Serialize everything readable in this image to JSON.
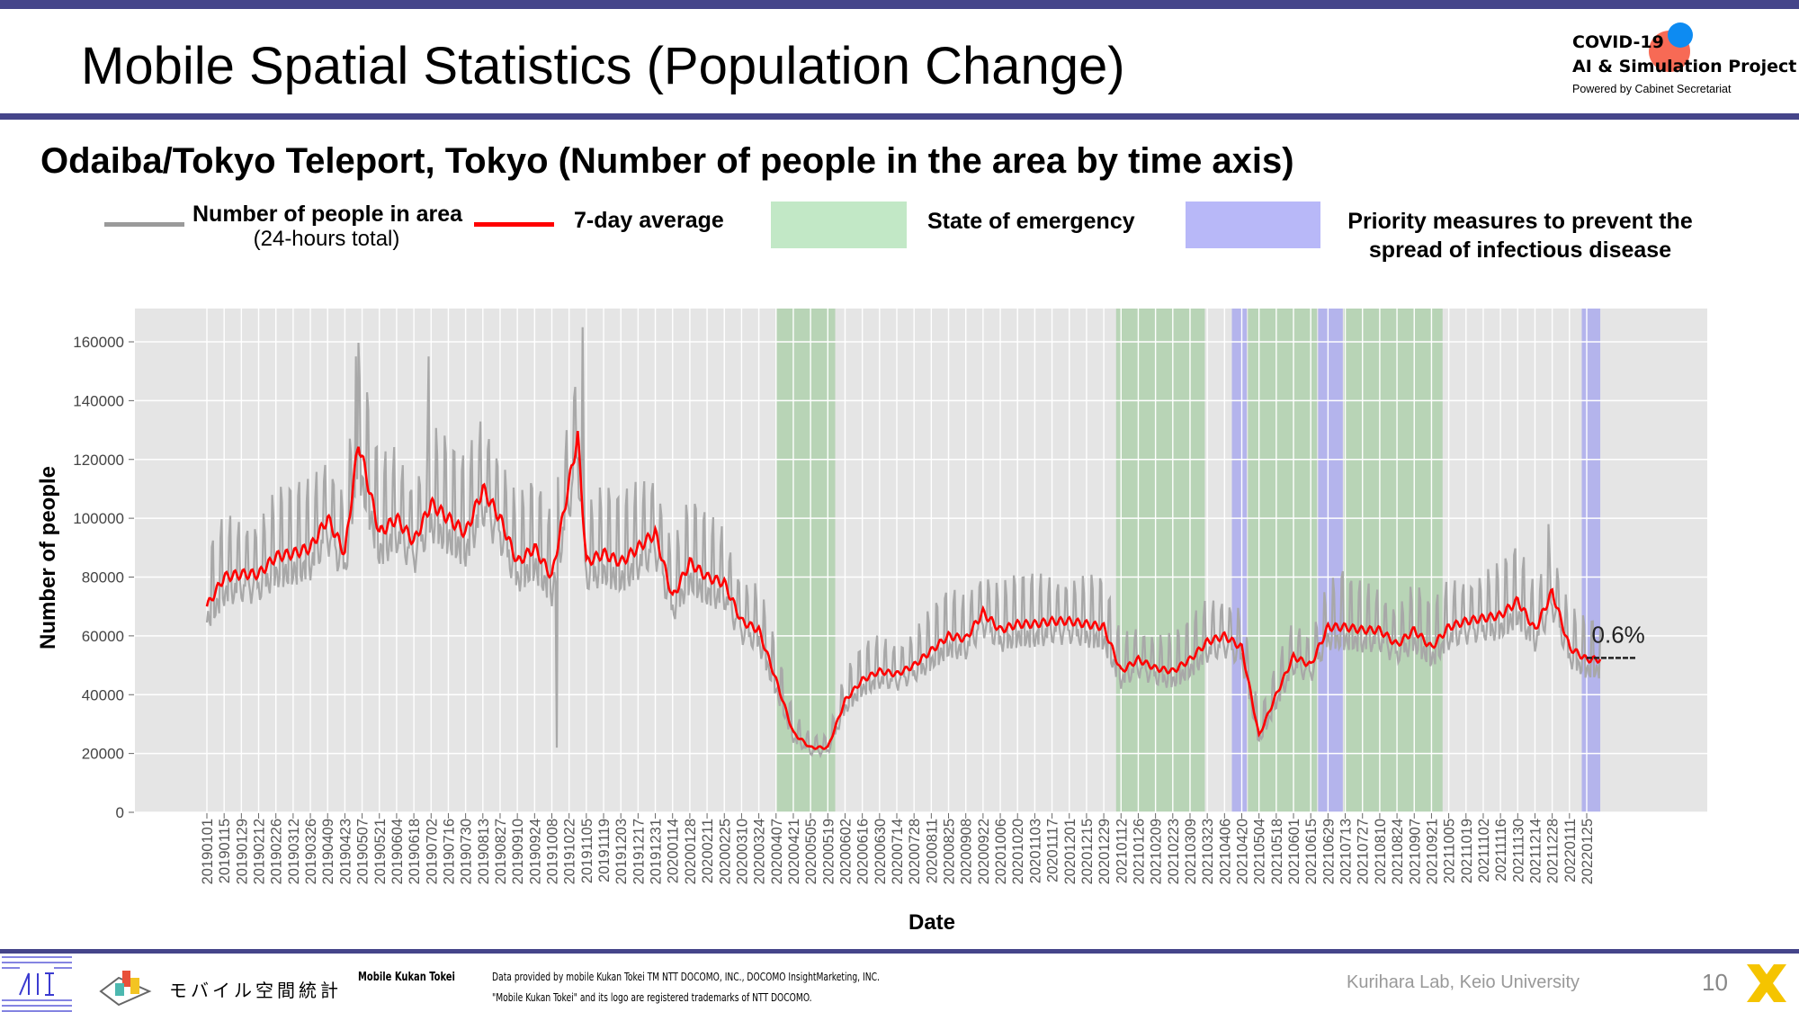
{
  "header": {
    "title": "Mobile Spatial Statistics (Population Change)",
    "logo": {
      "line1": "COVID-19",
      "line2": "AI & Simulation Project",
      "line3": "Powered by Cabinet Secretariat"
    }
  },
  "subtitle": "Odaiba/Tokyo Teleport, Tokyo (Number of people in the area by time axis)",
  "legend": {
    "daily_label": "Number of people in area",
    "daily_sublabel": "(24-hours total)",
    "avg_label": "7-day average",
    "emergency_label": "State of emergency",
    "priority_label_1": "Priority measures to prevent the",
    "priority_label_2": "spread of infectious disease"
  },
  "colors": {
    "header_bar": "#45458a",
    "daily": "#a8a8a8",
    "avg": "#ff0000",
    "emergency": "#b8d4b6",
    "priority": "#b4b4ec",
    "legend_emergency": "#c2e8c6",
    "legend_priority": "#b8b8f8",
    "plot_bg": "#e5e5e5",
    "forecast": "#222222"
  },
  "chart_data": {
    "type": "line",
    "xlabel": "Date",
    "ylabel": "Number of people",
    "ylim": [
      0,
      171000
    ],
    "yticks": [
      "0",
      "20000",
      "40000",
      "60000",
      "80000",
      "100000",
      "120000",
      "140000",
      "160000"
    ],
    "grid": true,
    "xticks": [
      "20190101",
      "20190115",
      "20190129",
      "20190212",
      "20190226",
      "20190312",
      "20190326",
      "20190409",
      "20190423",
      "20190507",
      "20190521",
      "20190604",
      "20190618",
      "20190702",
      "20190716",
      "20190730",
      "20190813",
      "20190827",
      "20190910",
      "20190924",
      "20191008",
      "20191022",
      "20191105",
      "20191119",
      "20191203",
      "20191217",
      "20191231",
      "20200114",
      "20200128",
      "20200211",
      "20200225",
      "20200310",
      "20200324",
      "20200407",
      "20200421",
      "20200505",
      "20200519",
      "20200602",
      "20200616",
      "20200630",
      "20200714",
      "20200728",
      "20200811",
      "20200825",
      "20200908",
      "20200922",
      "20201006",
      "20201020",
      "20201103",
      "20201117",
      "20201201",
      "20201215",
      "20201229",
      "20210112",
      "20210126",
      "20210209",
      "20210223",
      "20210309",
      "20210323",
      "20210406",
      "20210420",
      "20210504",
      "20210518",
      "20210601",
      "20210615",
      "20210629",
      "20210713",
      "20210727",
      "20210810",
      "20210824",
      "20210907",
      "20210921",
      "20211005",
      "20211019",
      "20211102",
      "20211116",
      "20211130",
      "20211214",
      "20211228",
      "20220111",
      "20220125"
    ],
    "avg_dates": [
      "20190101",
      "20190115",
      "20190129",
      "20190212",
      "20190226",
      "20190312",
      "20190326",
      "20190409",
      "20190423",
      "20190504",
      "20190521",
      "20190604",
      "20190618",
      "20190702",
      "20190716",
      "20190730",
      "20190813",
      "20190827",
      "20190910",
      "20190924",
      "20191008",
      "20191029",
      "20191105",
      "20191119",
      "20191203",
      "20191217",
      "20191231",
      "20200114",
      "20200128",
      "20200211",
      "20200225",
      "20200310",
      "20200324",
      "20200407",
      "20200421",
      "20200505",
      "20200519",
      "20200602",
      "20200616",
      "20200630",
      "20200714",
      "20200728",
      "20200811",
      "20200825",
      "20200908",
      "20200922",
      "20201006",
      "20201020",
      "20201103",
      "20201117",
      "20201201",
      "20201215",
      "20201229",
      "20210112",
      "20210126",
      "20210209",
      "20210223",
      "20210309",
      "20210323",
      "20210406",
      "20210420",
      "20210504",
      "20210518",
      "20210601",
      "20210615",
      "20210629",
      "20210713",
      "20210727",
      "20210810",
      "20210824",
      "20210907",
      "20210921",
      "20211005",
      "20211019",
      "20211102",
      "20211116",
      "20211130",
      "20211214",
      "20211228",
      "20220111",
      "20220125",
      "20220205"
    ],
    "avg_values": [
      70000,
      80000,
      81000,
      81000,
      87000,
      88000,
      90000,
      100000,
      88000,
      126000,
      95000,
      100000,
      92000,
      105000,
      100000,
      95000,
      110000,
      100000,
      85000,
      90000,
      80000,
      128000,
      85000,
      88000,
      85000,
      90000,
      95000,
      73000,
      85000,
      80000,
      78000,
      65000,
      62000,
      45000,
      27000,
      22000,
      22000,
      38000,
      45000,
      48000,
      47000,
      50000,
      55000,
      60000,
      59000,
      68000,
      62000,
      64000,
      64000,
      65000,
      65000,
      64000,
      63000,
      48000,
      52000,
      49000,
      48000,
      52000,
      58000,
      60000,
      56000,
      26000,
      40000,
      53000,
      50000,
      63000,
      63000,
      62000,
      62000,
      57000,
      62000,
      56000,
      63000,
      65000,
      66000,
      67000,
      72000,
      62000,
      75000,
      56000,
      52000,
      52000
    ],
    "daily_spikes": [
      {
        "date": "20190502",
        "value": 155000
      },
      {
        "date": "20190630",
        "value": 155000
      },
      {
        "date": "20191012",
        "value": 22000
      },
      {
        "date": "20191102",
        "value": 165000
      },
      {
        "date": "20210711",
        "value": 82000
      },
      {
        "date": "20211225",
        "value": 98000
      }
    ],
    "daily_weekly_swing": 0.13,
    "forecast": {
      "start": "20220125",
      "end": "20220306",
      "value": 52500,
      "label": "0.6%"
    },
    "emergency_periods": [
      [
        "20200407",
        "20200525"
      ],
      [
        "20210108",
        "20210321"
      ],
      [
        "20210425",
        "20210620"
      ],
      [
        "20210712",
        "20210930"
      ]
    ],
    "priority_periods": [
      [
        "20210412",
        "20210424"
      ],
      [
        "20210621",
        "20210711"
      ],
      [
        "20220121",
        "20220205"
      ]
    ]
  },
  "footer": {
    "kukan_logo_text": "モバイル空間統計",
    "brand": "Mobile Kukan Tokei",
    "credit_1": "Data provided by mobile Kukan Tokei TM NTT DOCOMO, INC., DOCOMO InsightMarketing, INC.",
    "credit_2": "\"Mobile Kukan Tokei\" and its logo are registered trademarks of NTT DOCOMO.",
    "lab": "Kurihara Lab, Keio University",
    "page_number": "10"
  }
}
